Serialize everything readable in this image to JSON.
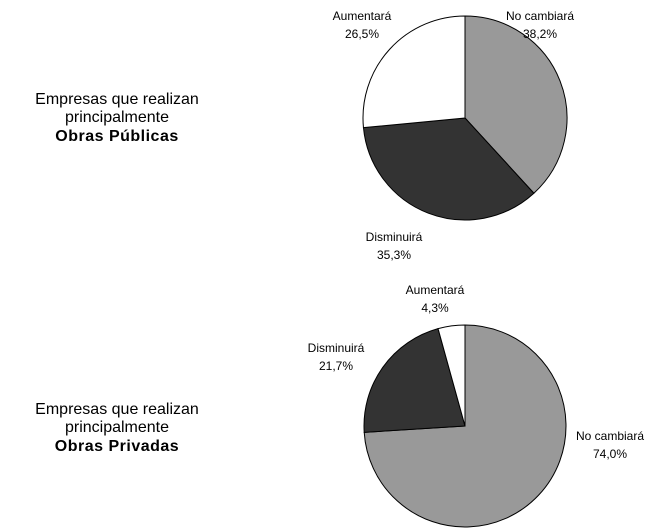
{
  "chart_data": [
    {
      "type": "pie",
      "title": [
        "Empresas que realizan",
        "principalmente"
      ],
      "subtitle": "Obras Públicas",
      "categories": [
        "No cambiará",
        "Disminuirá",
        "Aumentará"
      ],
      "values": [
        38.2,
        35.3,
        26.5
      ],
      "value_labels": [
        "38,2%",
        "35,3%",
        "26,5%"
      ],
      "colors": [
        "#999999",
        "#333333",
        "#ffffff"
      ]
    },
    {
      "type": "pie",
      "title": [
        "Empresas que realizan",
        "principalmente"
      ],
      "subtitle": "Obras Privadas",
      "categories": [
        "No cambiará",
        "Disminuirá",
        "Aumentará"
      ],
      "values": [
        74.0,
        21.7,
        4.3
      ],
      "value_labels": [
        "74,0%",
        "21,7%",
        "4,3%"
      ],
      "colors": [
        "#999999",
        "#333333",
        "#ffffff"
      ]
    }
  ]
}
